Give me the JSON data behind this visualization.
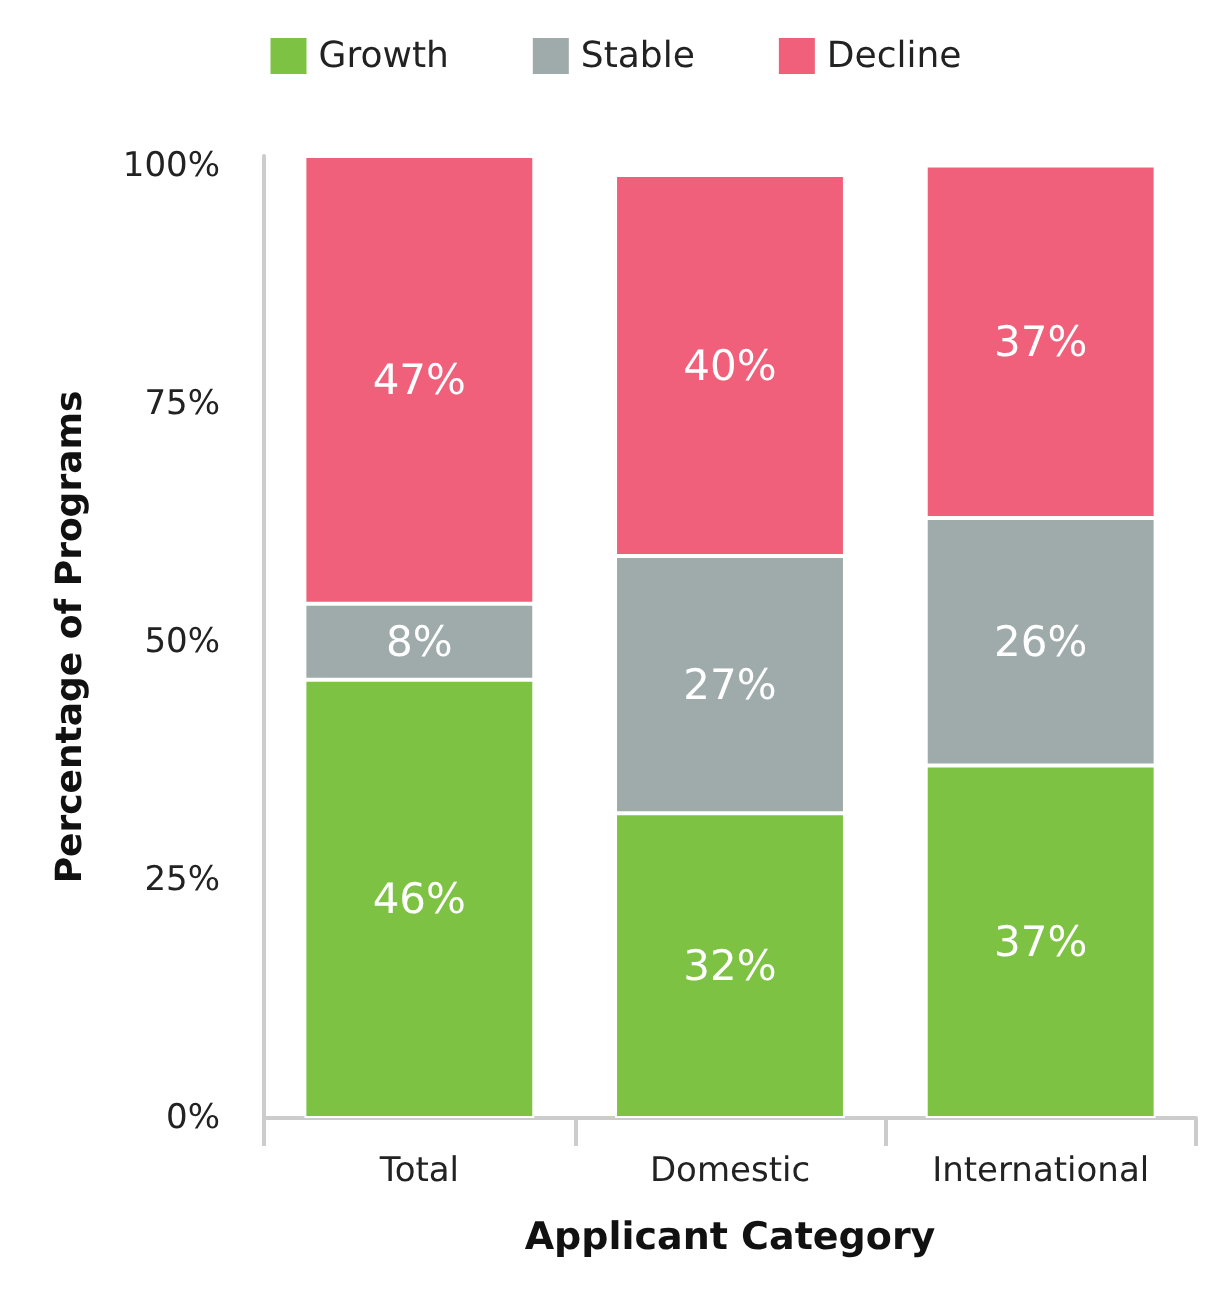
{
  "chart_data": {
    "type": "bar",
    "stacked": true,
    "xlabel": "Applicant Category",
    "ylabel": "Percentage of Programs",
    "categories": [
      "Total",
      "Domestic",
      "International"
    ],
    "series": [
      {
        "name": "Growth",
        "color": "#7dc243",
        "values": [
          46,
          32,
          37
        ],
        "value_labels": [
          "46%",
          "32%",
          "37%"
        ]
      },
      {
        "name": "Stable",
        "color": "#9fabab",
        "values": [
          8,
          27,
          26
        ],
        "value_labels": [
          "8%",
          "27%",
          "26%"
        ]
      },
      {
        "name": "Decline",
        "color": "#f0607a",
        "values": [
          47,
          40,
          37
        ],
        "value_labels": [
          "47%",
          "40%",
          "37%"
        ]
      }
    ],
    "ylim": [
      0,
      101
    ],
    "yticks": [
      {
        "value": 0,
        "label": "0%"
      },
      {
        "value": 25,
        "label": "25%"
      },
      {
        "value": 50,
        "label": "50%"
      },
      {
        "value": 75,
        "label": "75%"
      },
      {
        "value": 100,
        "label": "100%"
      }
    ],
    "grid": false,
    "legend": "top"
  }
}
